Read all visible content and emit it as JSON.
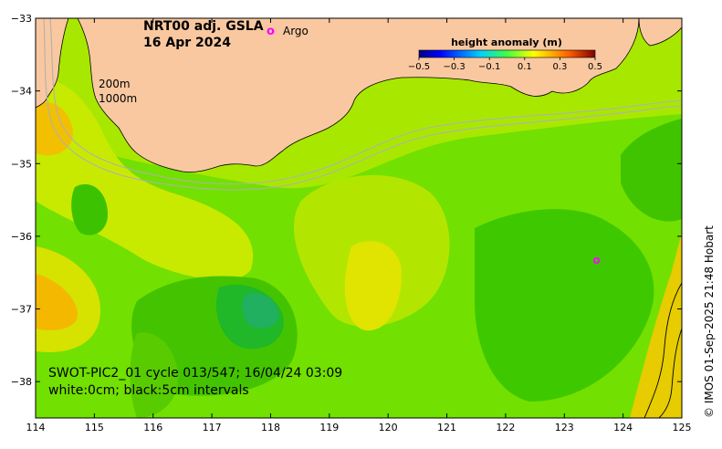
{
  "map": {
    "product": "NRT00 adj. GSLA",
    "date": "16 Apr 2024",
    "legend_argo": "Argo",
    "legend_argo_symbol": "o",
    "isobath_200": "200m",
    "isobath_1000": "1000m",
    "pass_info": "SWOT-PIC2_01 cycle 013/547; 16/04/24 03:09",
    "contour_info": "white:0cm; black:5cm intervals",
    "credit": "© IMOS 01-Sep-2025 21:48 Hobart"
  },
  "colorbar": {
    "title": "height anomaly (m)",
    "ticks": [
      "−0.5",
      "−0.3",
      "−0.1",
      "0.1",
      "0.3",
      "0.5"
    ],
    "min": -0.5,
    "max": 0.5
  },
  "axes": {
    "lon_ticks": [
      "114",
      "115",
      "116",
      "117",
      "118",
      "119",
      "120",
      "121",
      "122",
      "123",
      "124",
      "125"
    ],
    "lat_ticks": [
      "−33",
      "−34",
      "−35",
      "−36",
      "−37",
      "−38"
    ]
  },
  "colors": {
    "land": "#f9c8a0",
    "argo": "#ff00ff",
    "isobath": "#b0b0b0",
    "sea_green": "#6fe000"
  },
  "argo_floats": [
    {
      "lon": 123.55,
      "lat": -36.33
    }
  ]
}
